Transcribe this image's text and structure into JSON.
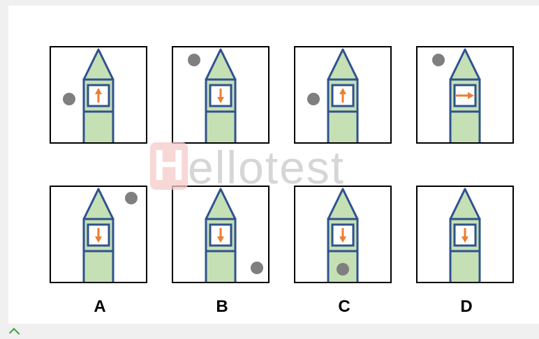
{
  "colors": {
    "roof": "#c5e0b4",
    "body": "#c5e0b4",
    "outline": "#2f528f",
    "arrow": "#ed7d31",
    "dot": "#7f7f7f"
  },
  "top_row": [
    {
      "arrow": "up",
      "dot": "left"
    },
    {
      "arrow": "down",
      "dot": "top-left"
    },
    {
      "arrow": "up",
      "dot": "left"
    },
    {
      "arrow": "right",
      "dot": "top-left"
    }
  ],
  "bottom_row": [
    {
      "arrow": "down",
      "dot": "top-right"
    },
    {
      "arrow": "down",
      "dot": "bottom-right"
    },
    {
      "arrow": "down",
      "dot": "in-tower-base"
    },
    {
      "arrow": "down",
      "dot": "none"
    }
  ],
  "option_labels": [
    "A",
    "B",
    "C",
    "D"
  ],
  "watermark": {
    "first": "H",
    "rest": "ellotest"
  }
}
